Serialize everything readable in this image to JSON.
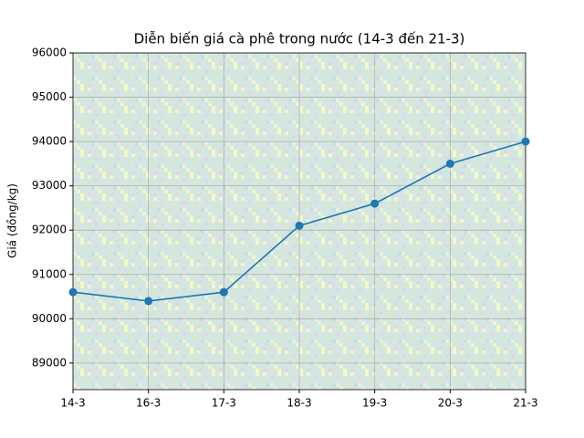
{
  "chart_data": {
    "type": "line",
    "title": "Diễn biến giá cà phê trong nước (14-3 đến 21-3)",
    "y_label": "Giá (đồng/kg)",
    "categories": [
      "14-3",
      "16-3",
      "17-3",
      "18-3",
      "19-3",
      "20-3",
      "21-3"
    ],
    "values": [
      90600,
      90400,
      90600,
      92100,
      92600,
      93500,
      94000
    ],
    "color": "#1f77b4",
    "ylim": [
      88400,
      96000
    ],
    "yticks": [
      89000,
      90000,
      91000,
      92000,
      93000,
      94000,
      95000,
      96000
    ],
    "grid": true
  }
}
